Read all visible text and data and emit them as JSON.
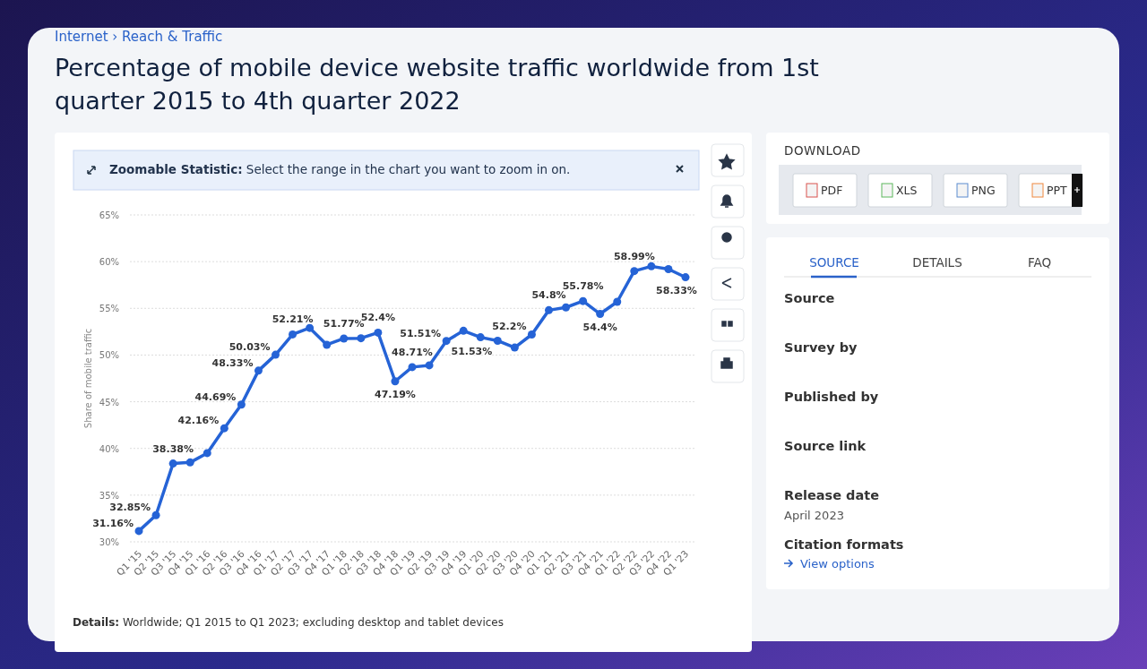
{
  "chart_data": [
    {
      "type": "line",
      "title": "Percentage of mobile device website traffic worldwide from 1st quarter 2015 to 4th quarter 2022",
      "ylabel": "Share of mobile traffic",
      "categories": [
        "Q1 '15",
        "Q2 '15",
        "Q3 '15",
        "Q4 '15",
        "Q1 '16",
        "Q2 '16",
        "Q3 '16",
        "Q4 '16",
        "Q1 '17",
        "Q2 '17",
        "Q3 '17",
        "Q4 '17",
        "Q1 '18",
        "Q2 '18",
        "Q3 '18",
        "Q4 '18",
        "Q1 '19",
        "Q2 '19",
        "Q3 '19",
        "Q4 '19",
        "Q1 '20",
        "Q2 '20",
        "Q3 '20",
        "Q4 '20",
        "Q1 '21",
        "Q2 '21",
        "Q3 '21",
        "Q4 '21",
        "Q1 '22",
        "Q2 '22",
        "Q3 '22",
        "Q4 '22",
        "Q1 '23"
      ],
      "series": [
        {
          "color": "#2563d6",
          "values": [
            31.16,
            32.85,
            38.38,
            38.5,
            39.5,
            42.16,
            44.69,
            48.33,
            50.03,
            52.21,
            52.9,
            51.1,
            51.77,
            51.8,
            52.4,
            47.19,
            48.71,
            48.9,
            51.51,
            52.6,
            51.9,
            51.53,
            50.8,
            52.2,
            54.8,
            55.1,
            55.78,
            54.4,
            55.7,
            58.99,
            59.5,
            59.2,
            58.33
          ],
          "value_labels": [
            "31.16%",
            "32.85%",
            "38.38%",
            null,
            null,
            "42.16%",
            "44.69%",
            "48.33%",
            "50.03%",
            "52.21%",
            null,
            null,
            "51.77%",
            null,
            "52.4%",
            "47.19%",
            "48.71%",
            null,
            "51.51%",
            null,
            null,
            "51.53%",
            null,
            "52.2%",
            "54.8%",
            null,
            "55.78%",
            "54.4%",
            null,
            "58.99%",
            null,
            null,
            "58.33%"
          ]
        }
      ],
      "ylim": [
        30,
        65
      ],
      "yticks": [
        {
          "value": 30,
          "label": "30%"
        },
        {
          "value": 35,
          "label": "35%"
        },
        {
          "value": 40,
          "label": "40%"
        },
        {
          "value": 45,
          "label": "45%"
        },
        {
          "value": 50,
          "label": "50%"
        },
        {
          "value": 55,
          "label": "55%"
        },
        {
          "value": 60,
          "label": "60%"
        },
        {
          "value": 65,
          "label": "65%"
        }
      ],
      "grid": "y",
      "marker": "circle",
      "line_style": "solid",
      "annotations": [
        "Internet › Reach & Traffic",
        "Zoomable Statistic: Select the range in the chart you want to zoom in on.",
        "Details: Worldwide; Q1 2015 to Q1 2023; excluding desktop and tablet devices"
      ]
    },
    {
      "type": "other",
      "annotations": [
        "DOWNLOAD",
        "PDF",
        "XLS",
        "PNG",
        "PPT",
        "SOURCE",
        "DETAILS",
        "FAQ",
        "Source",
        "Survey by",
        "Published by",
        "Source link",
        "Release date",
        "April 2023",
        "Citation formats",
        "View options"
      ]
    }
  ]
}
